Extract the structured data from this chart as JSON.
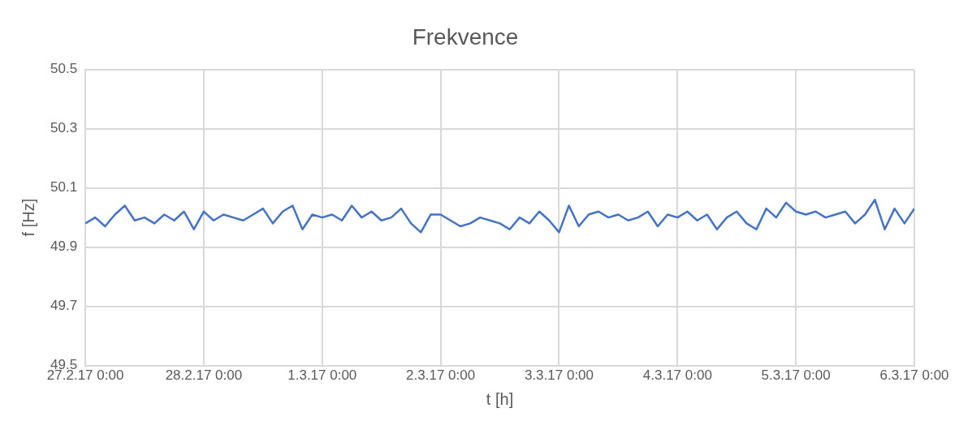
{
  "chart_data": {
    "type": "line",
    "title": "Frekvence",
    "xlabel": "t [h]",
    "ylabel": "f [Hz]",
    "x": [
      "--02-27T00:00",
      "--02-27T02:00",
      "--02-27T04:00",
      "--02-27T06:00",
      "--02-27T08:00",
      "--02-27T10:00",
      "--02-27T12:00",
      "--02-27T14:00",
      "--02-27T16:00",
      "--02-27T18:00",
      "--02-27T20:00",
      "--02-27T22:00",
      "--02-28T00:00",
      "--02-28T02:00",
      "--02-28T04:00",
      "--02-28T06:00",
      "--02-28T08:00",
      "--02-28T10:00",
      "--02-28T12:00",
      "--02-28T14:00",
      "--02-28T16:00",
      "--02-28T18:00",
      "--02-28T20:00",
      "--02-28T22:00",
      "--03-01T00:00",
      "--03-01T02:00",
      "--03-01T04:00",
      "--03-01T06:00",
      "--03-01T08:00",
      "--03-01T10:00",
      "--03-01T12:00",
      "--03-01T14:00",
      "--03-01T16:00",
      "--03-01T18:00",
      "--03-01T20:00",
      "--03-01T22:00",
      "--03-02T00:00",
      "--03-02T02:00",
      "--03-02T04:00",
      "--03-02T06:00",
      "--03-02T08:00",
      "--03-02T10:00",
      "--03-02T12:00",
      "--03-02T14:00",
      "--03-02T16:00",
      "--03-02T18:00",
      "--03-02T20:00",
      "--03-02T22:00",
      "--03-03T00:00",
      "--03-03T02:00",
      "--03-03T04:00",
      "--03-03T06:00",
      "--03-03T08:00",
      "--03-03T10:00",
      "--03-03T12:00",
      "--03-03T14:00",
      "--03-03T16:00",
      "--03-03T18:00",
      "--03-03T20:00",
      "--03-03T22:00",
      "--03-04T00:00",
      "--03-04T02:00",
      "--03-04T04:00",
      "--03-04T06:00",
      "--03-04T08:00",
      "--03-04T10:00",
      "--03-04T12:00",
      "--03-04T14:00",
      "--03-04T16:00",
      "--03-04T18:00",
      "--03-04T20:00",
      "--03-04T22:00",
      "--03-05T00:00",
      "--03-05T02:00",
      "--03-05T04:00",
      "--03-05T06:00",
      "--03-05T08:00",
      "--03-05T10:00",
      "--03-05T12:00",
      "--03-05T14:00",
      "--03-05T16:00",
      "--03-05T18:00",
      "--03-05T20:00",
      "--03-05T22:00",
      "--03-06T00:00"
    ],
    "series": [
      {
        "color": "#4472c4",
        "values": [
          49.98,
          50.0,
          49.97,
          50.01,
          50.04,
          49.99,
          50.0,
          49.98,
          50.01,
          49.99,
          50.02,
          49.96,
          50.02,
          49.99,
          50.01,
          50.0,
          49.99,
          50.01,
          50.03,
          49.98,
          50.02,
          50.04,
          49.96,
          50.01,
          50.0,
          50.01,
          49.99,
          50.04,
          50.0,
          50.02,
          49.99,
          50.0,
          50.03,
          49.98,
          49.95,
          50.01,
          50.01,
          49.99,
          49.97,
          49.98,
          50.0,
          49.99,
          49.98,
          49.96,
          50.0,
          49.98,
          50.02,
          49.99,
          49.95,
          50.04,
          49.97,
          50.01,
          50.02,
          50.0,
          50.01,
          49.99,
          50.0,
          50.02,
          49.97,
          50.01,
          50.0,
          50.02,
          49.99,
          50.01,
          49.96,
          50.0,
          50.02,
          49.98,
          49.96,
          50.03,
          50.0,
          50.05,
          50.02,
          50.01,
          50.02,
          50.0,
          50.01,
          50.02,
          49.98,
          50.01,
          50.06,
          49.96,
          50.03,
          49.98,
          50.03
        ]
      }
    ],
    "xlim": [
      "--02-27T00:00",
      "--03-06T00:00"
    ],
    "xticks": [
      {
        "value": "--02-27T00:00",
        "label": "27.2.17 0:00"
      },
      {
        "value": "--02-28T00:00",
        "label": "28.2.17 0:00"
      },
      {
        "value": "--03-01T00:00",
        "label": "1.3.17 0:00"
      },
      {
        "value": "--03-02T00:00",
        "label": "2.3.17 0:00"
      },
      {
        "value": "--03-03T00:00",
        "label": "3.3.17 0:00"
      },
      {
        "value": "--03-04T00:00",
        "label": "4.3.17 0:00"
      },
      {
        "value": "--03-05T00:00",
        "label": "5.3.17 0:00"
      },
      {
        "value": "--03-06T00:00",
        "label": "6.3.17 0:00"
      }
    ],
    "ylim": [
      49.5,
      50.5
    ],
    "yticks": [
      49.5,
      49.7,
      49.9,
      50.1,
      50.3,
      50.5
    ],
    "grid": true,
    "legend": false,
    "marker": "none",
    "line_style": "solid"
  }
}
